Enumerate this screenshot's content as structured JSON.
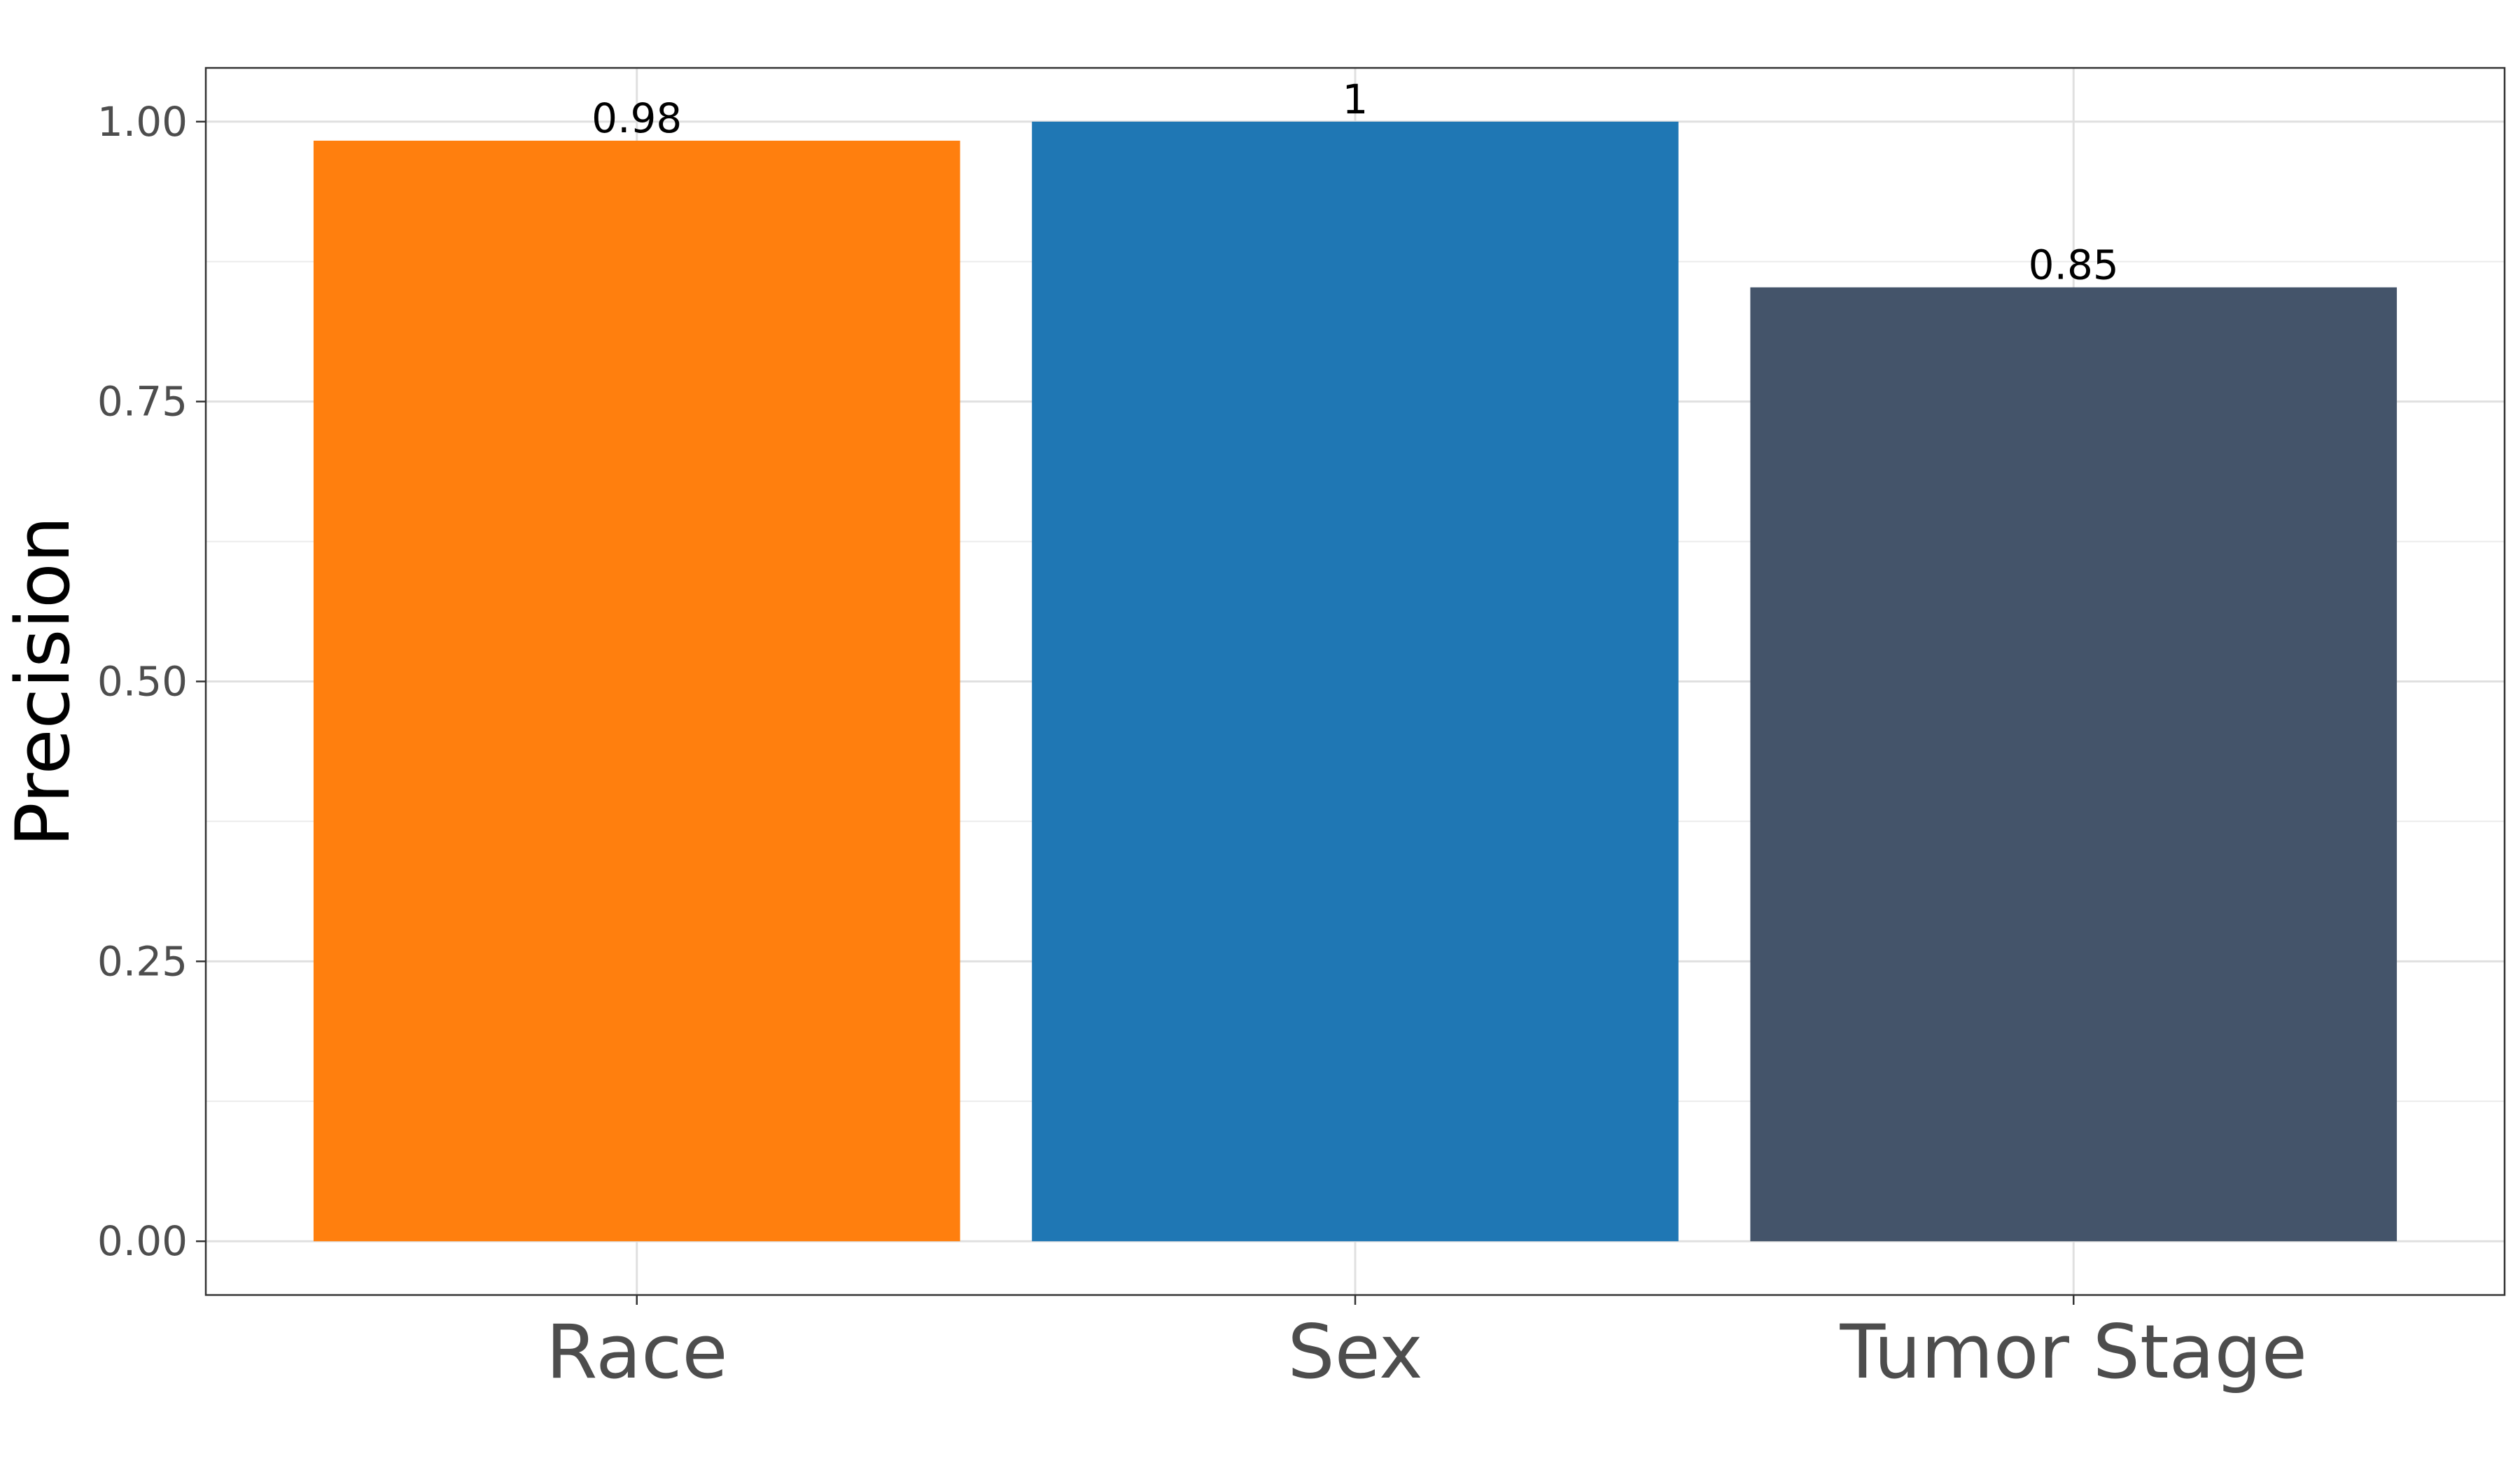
{
  "chart_data": {
    "type": "bar",
    "categories": [
      "Race",
      "Sex",
      "Tumor Stage"
    ],
    "values": [
      0.983,
      1.0,
      0.852
    ],
    "value_labels": [
      "0.98",
      "1",
      "0.85"
    ],
    "colors": [
      "#ff7f0e",
      "#1f77b4",
      "#44546a"
    ],
    "ylabel": "Precision",
    "ylim": [
      -0.048,
      1.048
    ],
    "yticks": [
      0.0,
      0.25,
      0.5,
      0.75,
      1.0
    ],
    "ytick_labels": [
      "0.00",
      "0.25",
      "0.50",
      "0.75",
      "1.00"
    ],
    "grid": true,
    "legend": "none"
  }
}
